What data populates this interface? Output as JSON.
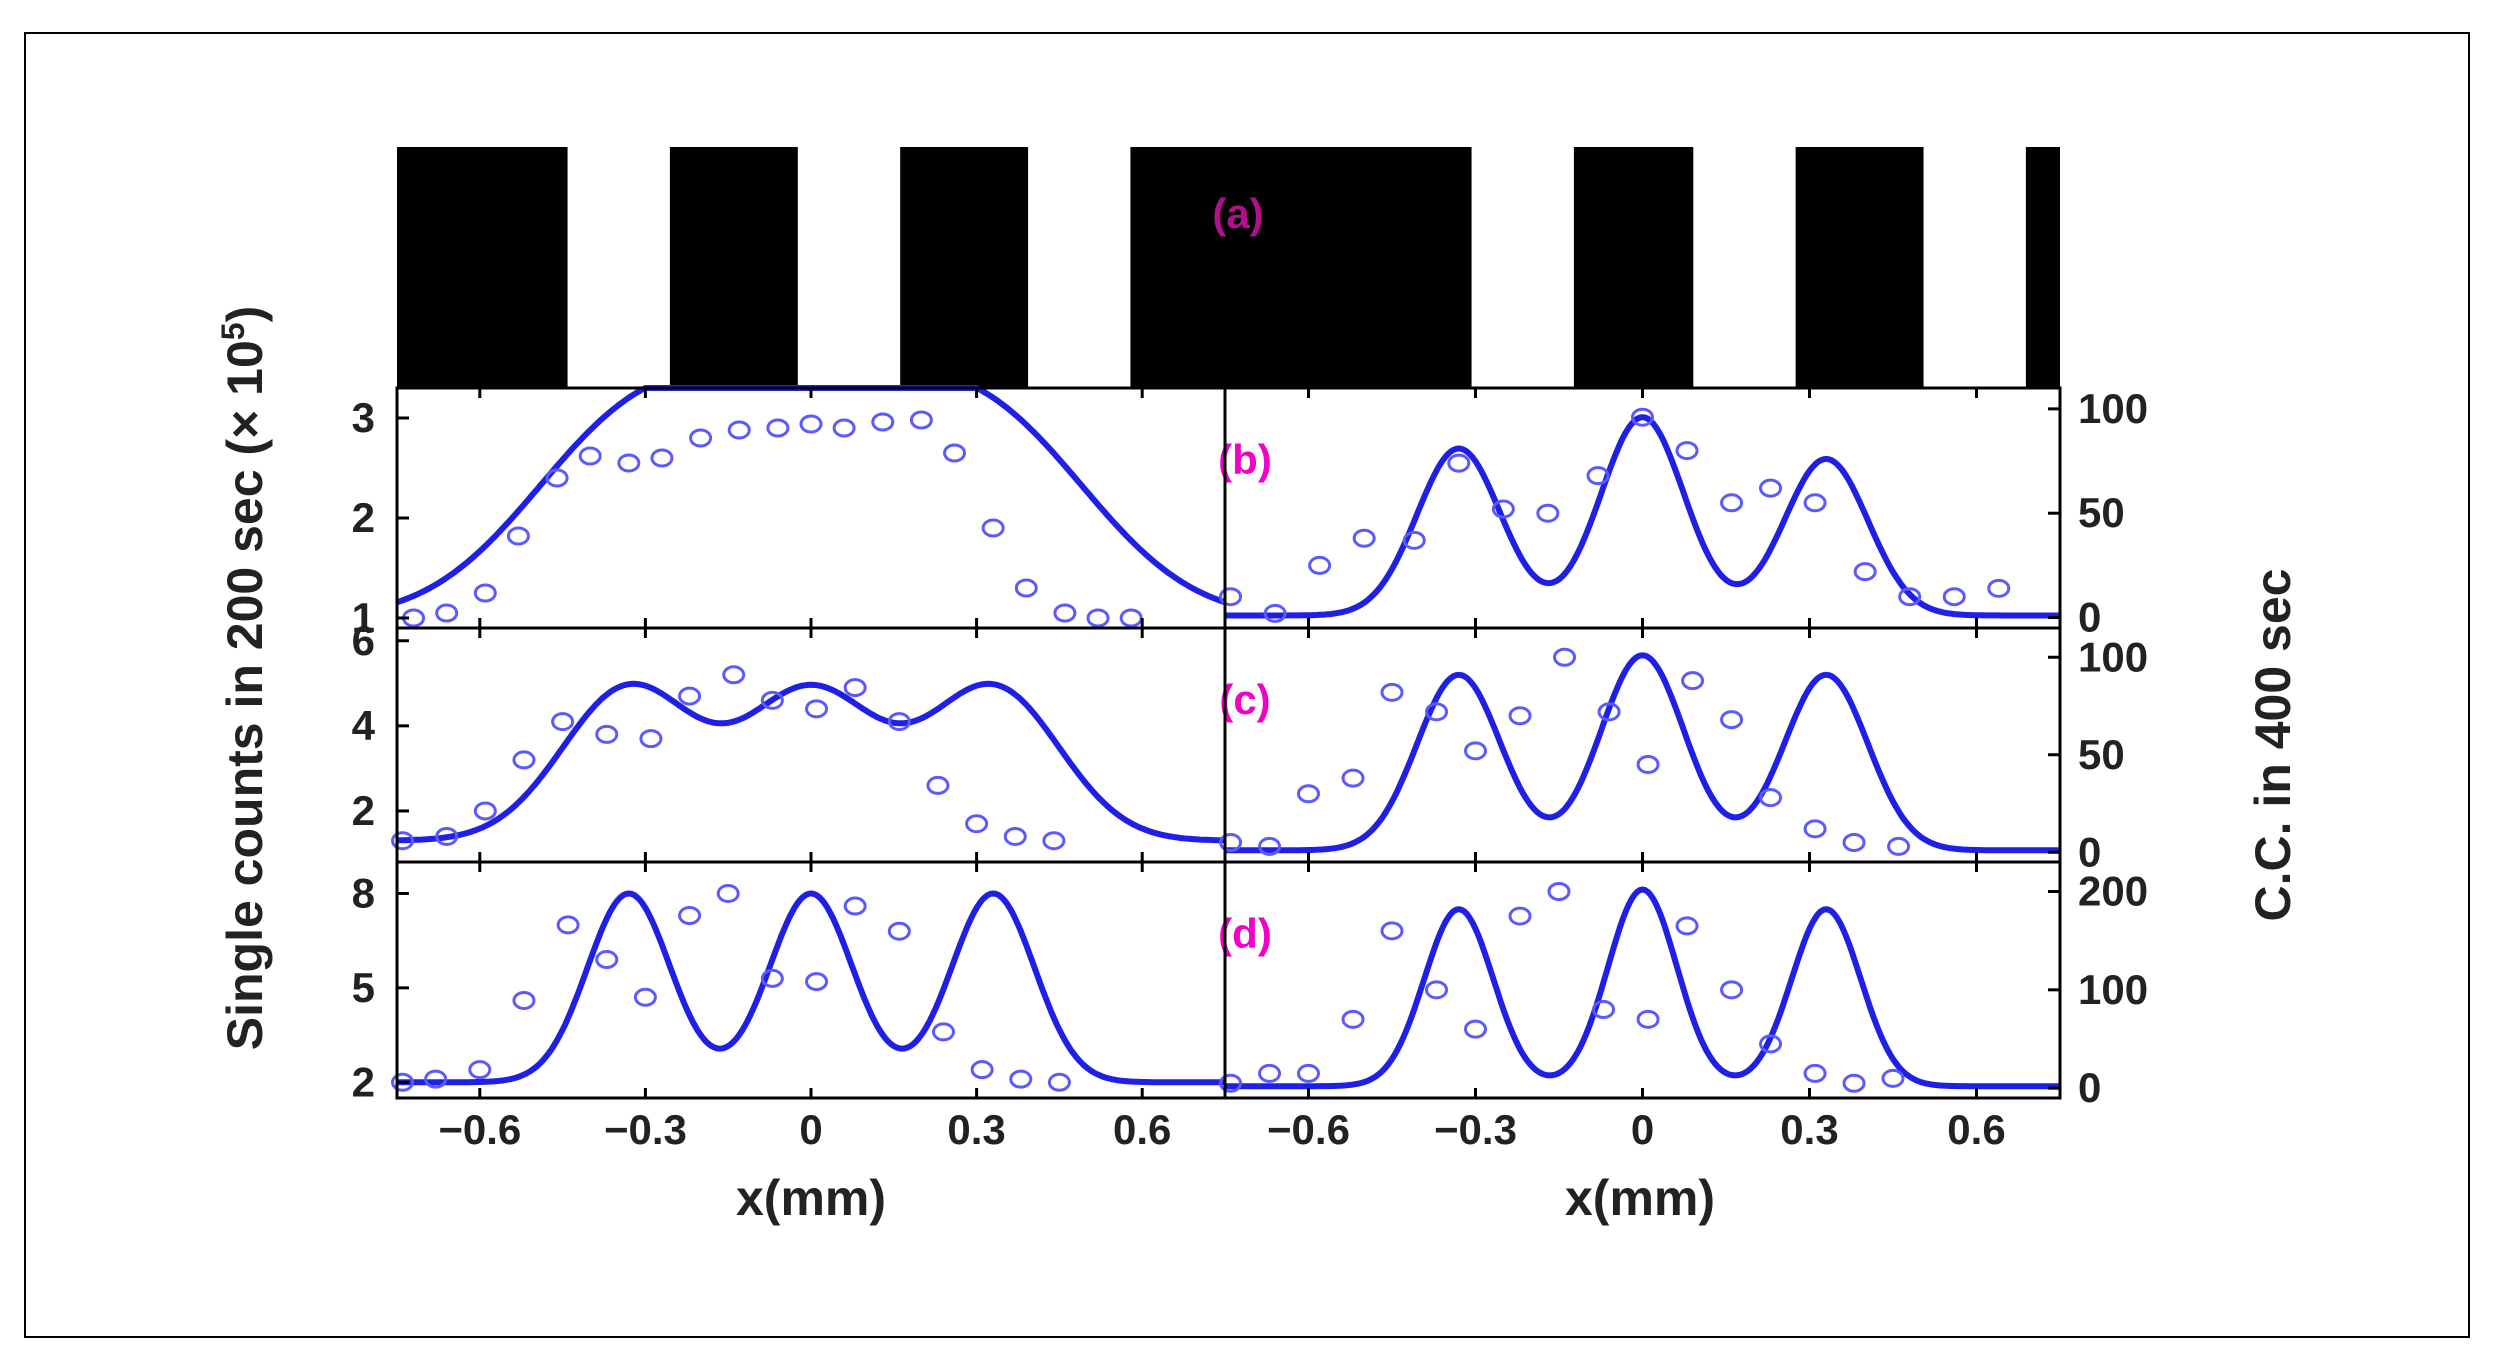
{
  "colors": {
    "series": "#1f1fe6",
    "marker": "#5a5aff",
    "panel_label_a": "#b0108a",
    "panel_label": "#f000c8",
    "axis": "#000000",
    "slit": "#000000"
  },
  "figure": {
    "left_ylabel": "Single counts in 200 sec (× 10",
    "left_ylabel_sup": "5",
    "left_ylabel_end": ")",
    "right_ylabel": "C.C. in 400 sec",
    "left_xlabel": "x(mm)",
    "right_xlabel": "x(mm)"
  },
  "chart_data": [
    {
      "type": "diagram",
      "id": "a",
      "label": "(a)",
      "slits_x_mm": [
        [
          -0.55,
          -0.43
        ],
        [
          -0.28,
          -0.16
        ],
        [
          -0.01,
          0.11
        ],
        [
          0.51,
          0.63
        ],
        [
          0.77,
          0.89
        ],
        [
          1.04,
          1.16
        ]
      ]
    },
    {
      "type": "scatter",
      "id": "b-left",
      "label": "(b)",
      "xlim": [
        -0.75,
        0.75
      ],
      "ylim": [
        0.9,
        3.3
      ],
      "yticks": [
        1,
        2,
        3
      ],
      "xticks": [
        -0.6,
        -0.3,
        0,
        0.3,
        0.6
      ],
      "xtick_labels": [
        "−0.6",
        "−0.3",
        "0",
        "0.3",
        "0.6"
      ],
      "fit": {
        "base": 1.0,
        "amps": [
          1.8,
          1.8,
          1.8
        ],
        "sigma": 0.19
      },
      "points": [
        [
          -0.72,
          1.0
        ],
        [
          -0.66,
          1.05
        ],
        [
          -0.59,
          1.25
        ],
        [
          -0.53,
          1.82
        ],
        [
          -0.46,
          2.4
        ],
        [
          -0.4,
          2.62
        ],
        [
          -0.33,
          2.55
        ],
        [
          -0.27,
          2.6
        ],
        [
          -0.2,
          2.8
        ],
        [
          -0.13,
          2.88
        ],
        [
          -0.06,
          2.9
        ],
        [
          0.0,
          2.94
        ],
        [
          0.06,
          2.9
        ],
        [
          0.13,
          2.96
        ],
        [
          0.2,
          2.98
        ],
        [
          0.26,
          2.65
        ],
        [
          0.33,
          1.9
        ],
        [
          0.39,
          1.3
        ],
        [
          0.46,
          1.05
        ],
        [
          0.52,
          1.0
        ],
        [
          0.58,
          1.0
        ]
      ]
    },
    {
      "type": "scatter",
      "id": "b-right",
      "xlim": [
        -0.75,
        0.75
      ],
      "ylim": [
        -5,
        110
      ],
      "yticks": [
        0,
        50,
        100
      ],
      "xticks": [
        -0.6,
        -0.3,
        0,
        0.3,
        0.6
      ],
      "xtick_labels": [
        "−0.6",
        "−0.3",
        "0",
        "0.3",
        "0.6"
      ],
      "fit": {
        "base": 1.0,
        "amps": [
          80,
          95,
          75
        ],
        "sigma": 0.075
      },
      "points": [
        [
          -0.74,
          10
        ],
        [
          -0.66,
          2
        ],
        [
          -0.58,
          25
        ],
        [
          -0.5,
          38
        ],
        [
          -0.41,
          37
        ],
        [
          -0.33,
          74
        ],
        [
          -0.25,
          52
        ],
        [
          -0.17,
          50
        ],
        [
          -0.08,
          68
        ],
        [
          0.0,
          96
        ],
        [
          0.08,
          80
        ],
        [
          0.16,
          55
        ],
        [
          0.23,
          62
        ],
        [
          0.31,
          55
        ],
        [
          0.4,
          22
        ],
        [
          0.48,
          10
        ],
        [
          0.56,
          10
        ],
        [
          0.64,
          14
        ]
      ]
    },
    {
      "type": "scatter",
      "id": "c-left",
      "label": "(c)",
      "xlim": [
        -0.75,
        0.75
      ],
      "ylim": [
        0.8,
        6.3
      ],
      "yticks": [
        2,
        4,
        6
      ],
      "xticks": [
        -0.6,
        -0.3,
        0,
        0.3,
        0.6
      ],
      "xtick_labels": [
        "−0.6",
        "−0.3",
        "0",
        "0.3",
        "0.6"
      ],
      "fit": {
        "base": 1.3,
        "amps": [
          3.6,
          3.5,
          3.6
        ],
        "sigma": 0.12
      },
      "points": [
        [
          -0.74,
          1.3
        ],
        [
          -0.66,
          1.4
        ],
        [
          -0.59,
          2.0
        ],
        [
          -0.52,
          3.2
        ],
        [
          -0.45,
          4.1
        ],
        [
          -0.37,
          3.8
        ],
        [
          -0.29,
          3.7
        ],
        [
          -0.22,
          4.7
        ],
        [
          -0.14,
          5.2
        ],
        [
          -0.07,
          4.6
        ],
        [
          0.01,
          4.4
        ],
        [
          0.08,
          4.9
        ],
        [
          0.16,
          4.1
        ],
        [
          0.23,
          2.6
        ],
        [
          0.3,
          1.7
        ],
        [
          0.37,
          1.4
        ],
        [
          0.44,
          1.3
        ]
      ]
    },
    {
      "type": "scatter",
      "id": "c-right",
      "xlim": [
        -0.75,
        0.75
      ],
      "ylim": [
        -5,
        115
      ],
      "yticks": [
        0,
        50,
        100
      ],
      "xticks": [
        -0.6,
        -0.3,
        0,
        0.3,
        0.6
      ],
      "xtick_labels": [
        "−0.6",
        "−0.3",
        "0",
        "0.3",
        "0.6"
      ],
      "fit": {
        "base": 1.0,
        "amps": [
          90,
          100,
          90
        ],
        "sigma": 0.075
      },
      "points": [
        [
          -0.74,
          5
        ],
        [
          -0.67,
          3
        ],
        [
          -0.6,
          30
        ],
        [
          -0.52,
          38
        ],
        [
          -0.45,
          82
        ],
        [
          -0.37,
          72
        ],
        [
          -0.3,
          52
        ],
        [
          -0.22,
          70
        ],
        [
          -0.14,
          100
        ],
        [
          -0.06,
          72
        ],
        [
          0.01,
          45
        ],
        [
          0.09,
          88
        ],
        [
          0.16,
          68
        ],
        [
          0.23,
          28
        ],
        [
          0.31,
          12
        ],
        [
          0.38,
          5
        ],
        [
          0.46,
          3
        ]
      ]
    },
    {
      "type": "scatter",
      "id": "d-left",
      "label": "(d)",
      "xlim": [
        -0.75,
        0.75
      ],
      "ylim": [
        1.5,
        9.0
      ],
      "yticks": [
        2,
        5,
        8
      ],
      "xticks": [
        -0.6,
        -0.3,
        0,
        0.3,
        0.6
      ],
      "xtick_labels": [
        "−0.6",
        "−0.3",
        "0",
        "0.3",
        "0.6"
      ],
      "fit": {
        "base": 2.0,
        "amps": [
          6.0,
          6.0,
          6.0
        ],
        "sigma": 0.075
      },
      "points": [
        [
          -0.74,
          2.0
        ],
        [
          -0.68,
          2.1
        ],
        [
          -0.6,
          2.4
        ],
        [
          -0.52,
          4.6
        ],
        [
          -0.44,
          7.0
        ],
        [
          -0.37,
          5.9
        ],
        [
          -0.3,
          4.7
        ],
        [
          -0.22,
          7.3
        ],
        [
          -0.15,
          8.0
        ],
        [
          -0.07,
          5.3
        ],
        [
          0.01,
          5.2
        ],
        [
          0.08,
          7.6
        ],
        [
          0.16,
          6.8
        ],
        [
          0.24,
          3.6
        ],
        [
          0.31,
          2.4
        ],
        [
          0.38,
          2.1
        ],
        [
          0.45,
          2.0
        ]
      ]
    },
    {
      "type": "scatter",
      "id": "d-right",
      "xlim": [
        -0.75,
        0.75
      ],
      "ylim": [
        -10,
        230
      ],
      "yticks": [
        0,
        100,
        200
      ],
      "xticks": [
        -0.6,
        -0.3,
        0,
        0.3,
        0.6
      ],
      "xtick_labels": [
        "−0.6",
        "−0.3",
        "0",
        "0.3",
        "0.6"
      ],
      "fit": {
        "base": 2.0,
        "amps": [
          180,
          200,
          180
        ],
        "sigma": 0.062
      },
      "points": [
        [
          -0.74,
          5
        ],
        [
          -0.67,
          15
        ],
        [
          -0.6,
          15
        ],
        [
          -0.52,
          70
        ],
        [
          -0.45,
          160
        ],
        [
          -0.37,
          100
        ],
        [
          -0.3,
          60
        ],
        [
          -0.22,
          175
        ],
        [
          -0.15,
          200
        ],
        [
          -0.07,
          80
        ],
        [
          0.01,
          70
        ],
        [
          0.08,
          165
        ],
        [
          0.16,
          100
        ],
        [
          0.23,
          45
        ],
        [
          0.31,
          15
        ],
        [
          0.38,
          5
        ],
        [
          0.45,
          10
        ]
      ]
    }
  ]
}
